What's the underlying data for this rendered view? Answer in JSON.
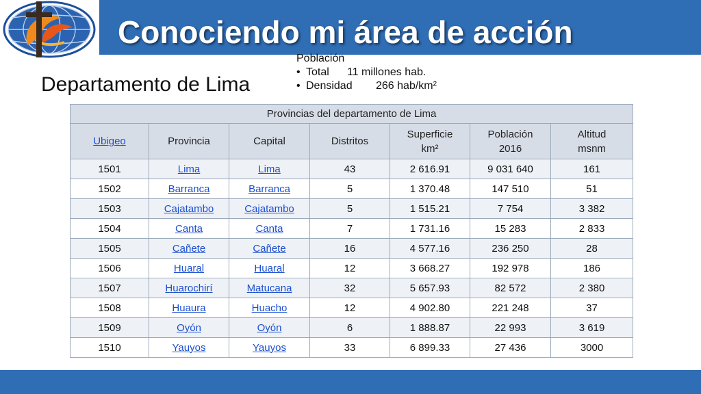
{
  "slide": {
    "title": "Conociendo mi área de acción",
    "subtitle": "Departamento de Lima",
    "colors": {
      "band": "#2f6db5",
      "header_cell": "#d7dde6",
      "link": "#1a4fd0"
    },
    "logo_icon": "globe-cross-logo-icon"
  },
  "population": {
    "heading": "Población",
    "total_label": "Total",
    "total_value": "11 millones hab.",
    "density_label": "Densidad",
    "density_value": "266 hab/km²"
  },
  "table": {
    "caption": "Provincias del departamento de Lima",
    "headers": {
      "ubigeo": "Ubigeo",
      "provincia": "Provincia",
      "capital": "Capital",
      "distritos": "Distritos",
      "superficie_1": "Superficie",
      "superficie_2": "km²",
      "poblacion_1": "Población",
      "poblacion_2": "2016",
      "altitud_1": "Altitud",
      "altitud_2": "msnm"
    },
    "rows": [
      [
        "1501",
        "Lima",
        "Lima",
        "43",
        "2 616.91",
        "9 031 640",
        "161"
      ],
      [
        "1502",
        "Barranca",
        "Barranca",
        "5",
        "1 370.48",
        "147 510",
        "51"
      ],
      [
        "1503",
        "Cajatambo",
        "Cajatambo",
        "5",
        "1 515.21",
        "7 754",
        "3 382"
      ],
      [
        "1504",
        "Canta",
        "Canta",
        "7",
        "1 731.16",
        "15 283",
        "2 833"
      ],
      [
        "1505",
        "Cañete",
        "Cañete",
        "16",
        "4 577.16",
        "236 250",
        "28"
      ],
      [
        "1506",
        "Huaral",
        "Huaral",
        "12",
        "3 668.27",
        "192 978",
        "186"
      ],
      [
        "1507",
        "Huarochirí",
        "Matucana",
        "32",
        "5 657.93",
        "82 572",
        "2 380"
      ],
      [
        "1508",
        "Huaura",
        "Huacho",
        "12",
        "4 902.80",
        "221 248",
        "37"
      ],
      [
        "1509",
        "Oyón",
        "Oyón",
        "6",
        "1 888.87",
        "22 993",
        "3 619"
      ],
      [
        "1510",
        "Yauyos",
        "Yauyos",
        "33",
        "6 899.33",
        "27 436",
        "3000"
      ]
    ]
  }
}
